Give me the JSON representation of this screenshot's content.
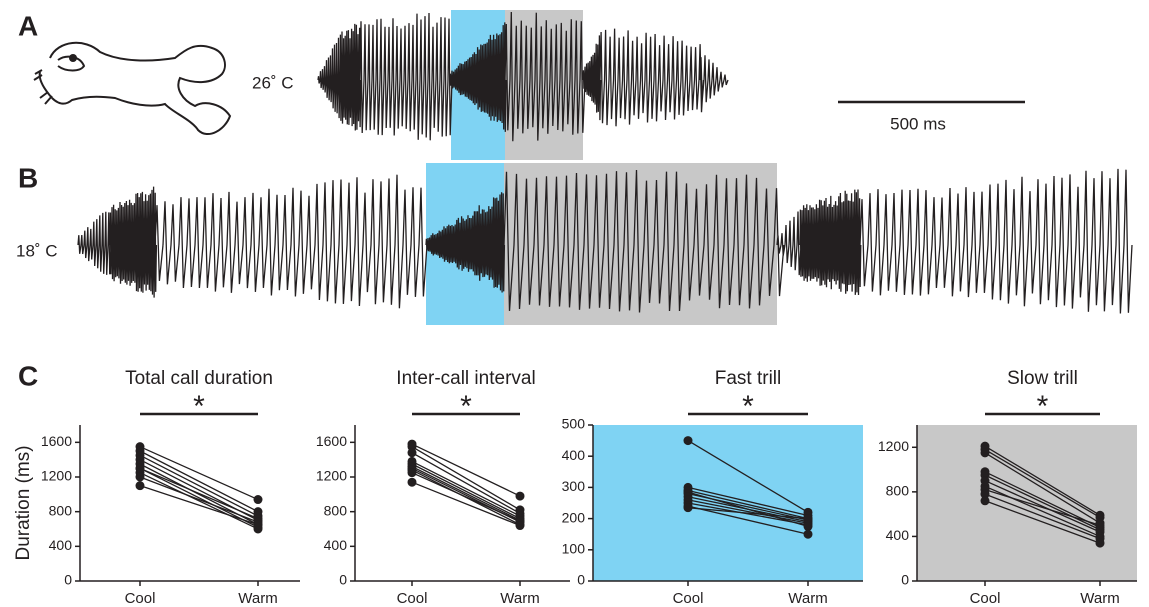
{
  "panels": {
    "a": "A",
    "b": "B",
    "c": "C"
  },
  "temperatures": {
    "warm": "26˚ C",
    "cool": "18˚ C"
  },
  "scale_bar": "500 ms",
  "chart_data": [
    {
      "type": "line",
      "title": "Total call duration",
      "ylabel": "Duration (ms)",
      "significance": "*",
      "categories": [
        "Cool",
        "Warm"
      ],
      "background": "#ffffff",
      "color": "#231f20",
      "ylim": [
        0,
        1800
      ],
      "yticks": [
        0,
        400,
        800,
        1200,
        1600
      ],
      "series": [
        {
          "values": [
            1550,
            940
          ]
        },
        {
          "values": [
            1500,
            800
          ]
        },
        {
          "values": [
            1450,
            750
          ]
        },
        {
          "values": [
            1400,
            700
          ]
        },
        {
          "values": [
            1350,
            650
          ]
        },
        {
          "values": [
            1300,
            620
          ]
        },
        {
          "values": [
            1300,
            720
          ]
        },
        {
          "values": [
            1250,
            600
          ]
        },
        {
          "values": [
            1200,
            680
          ]
        },
        {
          "values": [
            1100,
            650
          ]
        }
      ]
    },
    {
      "type": "line",
      "title": "Inter-call interval",
      "significance": "*",
      "categories": [
        "Cool",
        "Warm"
      ],
      "background": "#ffffff",
      "color": "#231f20",
      "ylim": [
        0,
        1800
      ],
      "yticks": [
        0,
        400,
        800,
        1200,
        1600
      ],
      "series": [
        {
          "values": [
            1580,
            980
          ]
        },
        {
          "values": [
            1550,
            820
          ]
        },
        {
          "values": [
            1480,
            780
          ]
        },
        {
          "values": [
            1380,
            750
          ]
        },
        {
          "values": [
            1350,
            720
          ]
        },
        {
          "values": [
            1320,
            700
          ]
        },
        {
          "values": [
            1300,
            680
          ]
        },
        {
          "values": [
            1280,
            650
          ]
        },
        {
          "values": [
            1250,
            690
          ]
        },
        {
          "values": [
            1140,
            640
          ]
        }
      ]
    },
    {
      "type": "line",
      "title": "Fast trill",
      "significance": "*",
      "categories": [
        "Cool",
        "Warm"
      ],
      "background": "#7fd3f3",
      "color": "#231f20",
      "ylim": [
        0,
        500
      ],
      "yticks": [
        0,
        100,
        200,
        300,
        400,
        500
      ],
      "series": [
        {
          "values": [
            450,
            220
          ]
        },
        {
          "values": [
            300,
            210
          ]
        },
        {
          "values": [
            290,
            200
          ]
        },
        {
          "values": [
            285,
            175
          ]
        },
        {
          "values": [
            280,
            195
          ]
        },
        {
          "values": [
            270,
            190
          ]
        },
        {
          "values": [
            260,
            185
          ]
        },
        {
          "values": [
            250,
            180
          ]
        },
        {
          "values": [
            240,
            150
          ]
        },
        {
          "values": [
            235,
            200
          ]
        }
      ]
    },
    {
      "type": "line",
      "title": "Slow trill",
      "significance": "*",
      "categories": [
        "Cool",
        "Warm"
      ],
      "background": "#c8c8c8",
      "color": "#231f20",
      "ylim": [
        0,
        1400
      ],
      "yticks": [
        0,
        400,
        800,
        1200
      ],
      "series": [
        {
          "values": [
            1210,
            590
          ]
        },
        {
          "values": [
            1180,
            570
          ]
        },
        {
          "values": [
            1150,
            520
          ]
        },
        {
          "values": [
            980,
            480
          ]
        },
        {
          "values": [
            950,
            460
          ]
        },
        {
          "values": [
            900,
            440
          ]
        },
        {
          "values": [
            850,
            400
          ]
        },
        {
          "values": [
            820,
            500
          ]
        },
        {
          "values": [
            780,
            380
          ]
        },
        {
          "values": [
            720,
            340
          ]
        }
      ]
    }
  ]
}
